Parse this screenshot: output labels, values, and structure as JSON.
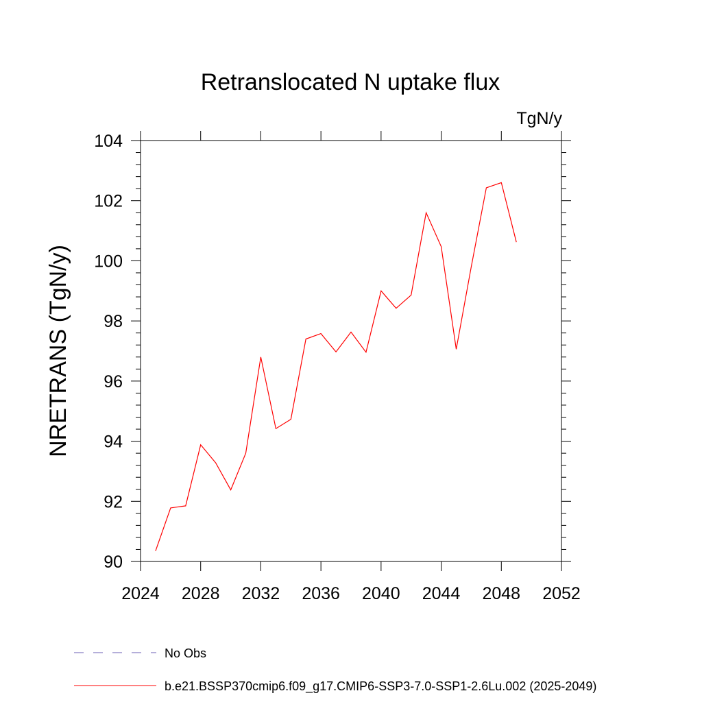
{
  "chart_data": {
    "type": "line",
    "title": "Retranslocated N uptake flux",
    "units_label": "TgN/y",
    "ylabel": "NRETRANS  (TgN/y)",
    "xlabel": "",
    "xlim": [
      2024,
      2052
    ],
    "ylim": [
      90,
      104
    ],
    "x_ticks": [
      2024,
      2028,
      2032,
      2036,
      2040,
      2044,
      2048,
      2052
    ],
    "y_ticks": [
      90,
      92,
      94,
      96,
      98,
      100,
      102,
      104
    ],
    "grid": false,
    "legend_placement": "bottom",
    "series": [
      {
        "name": "b.e21.BSSP370cmip6.f09_g17.CMIP6-SSP3-7.0-SSP1-2.6Lu.002 (2025-2049)",
        "color": "#ff0000",
        "style": "solid",
        "x": [
          2025,
          2026,
          2027,
          2028,
          2029,
          2030,
          2031,
          2032,
          2033,
          2034,
          2035,
          2036,
          2037,
          2038,
          2039,
          2040,
          2041,
          2042,
          2043,
          2044,
          2045,
          2046,
          2047,
          2048,
          2049
        ],
        "y": [
          90.35,
          91.78,
          91.85,
          93.88,
          93.28,
          92.38,
          93.6,
          96.8,
          94.42,
          94.73,
          97.4,
          97.58,
          96.97,
          97.63,
          96.96,
          99.0,
          98.42,
          98.86,
          101.6,
          100.47,
          97.06,
          99.8,
          102.43,
          102.6,
          100.62
        ]
      }
    ],
    "legend": [
      {
        "label": "No Obs",
        "color": "#6b5fb5",
        "style": "dashed"
      },
      {
        "label": "b.e21.BSSP370cmip6.f09_g17.CMIP6-SSP3-7.0-SSP1-2.6Lu.002 (2025-2049)",
        "color": "#ff0000",
        "style": "solid"
      }
    ]
  }
}
